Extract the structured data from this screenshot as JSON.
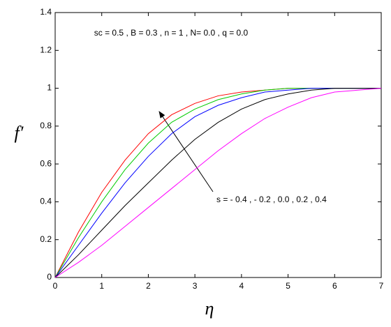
{
  "chart_data": {
    "type": "line",
    "annotations": [
      "sc = 0.5 , B = 0.3 , n = 1 , N= 0.0 , q = 0.0",
      "s = - 0.4 , - 0.2 , 0.0 , 0.2 ,  0.4"
    ],
    "xlabel": "η",
    "ylabel": "f′",
    "x": [
      0,
      0.5,
      1,
      1.5,
      2,
      2.5,
      3,
      3.5,
      4,
      4.5,
      5,
      5.5,
      6,
      6.5,
      7
    ],
    "series": [
      {
        "color": "#ff0000",
        "values": [
          0,
          0.24,
          0.45,
          0.62,
          0.76,
          0.86,
          0.92,
          0.96,
          0.98,
          0.99,
          1,
          1,
          1,
          1,
          1
        ]
      },
      {
        "color": "#00cc00",
        "values": [
          0,
          0.21,
          0.4,
          0.57,
          0.71,
          0.82,
          0.89,
          0.94,
          0.97,
          0.99,
          1,
          1,
          1,
          1,
          1
        ]
      },
      {
        "color": "#0000ff",
        "values": [
          0,
          0.17,
          0.34,
          0.5,
          0.64,
          0.76,
          0.85,
          0.91,
          0.95,
          0.98,
          0.99,
          1,
          1,
          1,
          1
        ]
      },
      {
        "color": "#000000",
        "values": [
          0,
          0.12,
          0.25,
          0.38,
          0.5,
          0.62,
          0.73,
          0.82,
          0.89,
          0.94,
          0.97,
          0.99,
          1,
          1,
          1
        ]
      },
      {
        "color": "#ff00ff",
        "values": [
          0,
          0.08,
          0.17,
          0.27,
          0.37,
          0.47,
          0.57,
          0.67,
          0.76,
          0.84,
          0.9,
          0.95,
          0.98,
          0.99,
          1
        ]
      }
    ],
    "xlim": [
      0,
      7
    ],
    "xticks": [
      0,
      1,
      2,
      3,
      4,
      5,
      6,
      7
    ],
    "ylim": [
      0,
      1.4
    ],
    "yticks": [
      0,
      0.2,
      0.4,
      0.6,
      0.8,
      1,
      1.2,
      1.4
    ]
  }
}
